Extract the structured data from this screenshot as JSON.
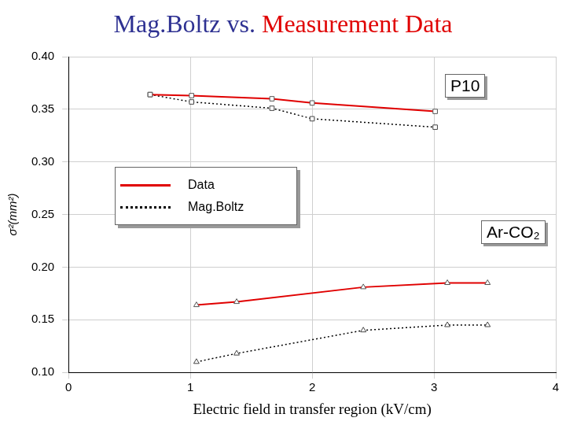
{
  "chart_data": {
    "type": "line",
    "title": "Mag.Boltz vs. Measurement Data",
    "x_label": "Electric field in transfer region (kV/cm)",
    "y_label": "σ²(mm²)",
    "annotations": [
      "P10",
      "Ar-CO₂"
    ],
    "xlim": [
      0,
      4
    ],
    "xticks": [
      0,
      1,
      2,
      3,
      4
    ],
    "ylim": [
      0.1,
      0.4
    ],
    "yticks": [
      0.1,
      0.15,
      0.2,
      0.25,
      0.3,
      0.35,
      0.4
    ],
    "grid": true,
    "legend": "left",
    "series": [
      {
        "name": "Data",
        "color": "#e00000",
        "marker": "square",
        "line_style": "solid",
        "x": [
          0.67,
          1.01,
          1.67,
          2.0,
          3.01
        ],
        "values": [
          0.364,
          0.363,
          0.36,
          0.356,
          0.348
        ]
      },
      {
        "name": "Mag.Boltz",
        "color": "#000000",
        "marker": "square",
        "line_style": "dotted",
        "x": [
          0.67,
          1.01,
          1.67,
          2.0,
          3.01
        ],
        "values": [
          0.364,
          0.357,
          0.351,
          0.341,
          0.333
        ]
      },
      {
        "name": "Data",
        "color": "#e00000",
        "marker": "triangle",
        "line_style": "solid",
        "x": [
          1.05,
          1.38,
          2.42,
          3.11,
          3.44
        ],
        "values": [
          0.164,
          0.167,
          0.181,
          0.185,
          0.185
        ]
      },
      {
        "name": "Mag.Boltz",
        "color": "#000000",
        "marker": "triangle",
        "line_style": "dotted",
        "x": [
          1.05,
          1.38,
          2.42,
          3.11,
          3.44
        ],
        "values": [
          0.11,
          0.118,
          0.14,
          0.145,
          0.145
        ]
      }
    ]
  }
}
